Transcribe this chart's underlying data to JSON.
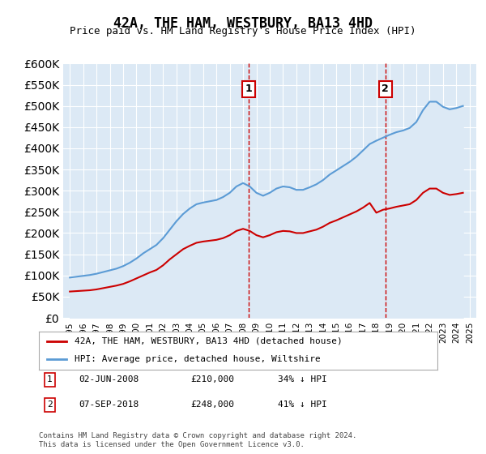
{
  "title": "42A, THE HAM, WESTBURY, BA13 4HD",
  "subtitle": "Price paid vs. HM Land Registry's House Price Index (HPI)",
  "footer": "Contains HM Land Registry data © Crown copyright and database right 2024.\nThis data is licensed under the Open Government Licence v3.0.",
  "legend_label_red": "42A, THE HAM, WESTBURY, BA13 4HD (detached house)",
  "legend_label_blue": "HPI: Average price, detached house, Wiltshire",
  "marker1_date": "02-JUN-2008",
  "marker1_price": "£210,000",
  "marker1_hpi": "34% ↓ HPI",
  "marker1_x": 2008.42,
  "marker2_date": "07-SEP-2018",
  "marker2_price": "£248,000",
  "marker2_hpi": "41% ↓ HPI",
  "marker2_x": 2018.67,
  "ylim_min": 0,
  "ylim_max": 600000,
  "xlim_min": 1994.5,
  "xlim_max": 2025.5,
  "background_color": "#ffffff",
  "plot_bg_color": "#dce9f5",
  "grid_color": "#ffffff",
  "red_line_color": "#cc0000",
  "blue_line_color": "#5b9bd5",
  "marker_box_color": "#cc0000",
  "dashed_line_color": "#cc0000",
  "hpi_years": [
    1995,
    1995.5,
    1996,
    1996.5,
    1997,
    1997.5,
    1998,
    1998.5,
    1999,
    1999.5,
    2000,
    2000.5,
    2001,
    2001.5,
    2002,
    2002.5,
    2003,
    2003.5,
    2004,
    2004.5,
    2005,
    2005.5,
    2006,
    2006.5,
    2007,
    2007.5,
    2008,
    2008.5,
    2009,
    2009.5,
    2010,
    2010.5,
    2011,
    2011.5,
    2012,
    2012.5,
    2013,
    2013.5,
    2014,
    2014.5,
    2015,
    2015.5,
    2016,
    2016.5,
    2017,
    2017.5,
    2018,
    2018.5,
    2019,
    2019.5,
    2020,
    2020.5,
    2021,
    2021.5,
    2022,
    2022.5,
    2023,
    2023.5,
    2024,
    2024.5
  ],
  "hpi_values": [
    95000,
    97000,
    99000,
    101000,
    104000,
    108000,
    112000,
    116000,
    122000,
    130000,
    140000,
    152000,
    162000,
    172000,
    188000,
    208000,
    228000,
    245000,
    258000,
    268000,
    272000,
    275000,
    278000,
    285000,
    295000,
    310000,
    318000,
    310000,
    295000,
    288000,
    295000,
    305000,
    310000,
    308000,
    302000,
    302000,
    308000,
    315000,
    325000,
    338000,
    348000,
    358000,
    368000,
    380000,
    395000,
    410000,
    418000,
    425000,
    432000,
    438000,
    442000,
    448000,
    462000,
    490000,
    510000,
    510000,
    498000,
    492000,
    495000,
    500000
  ],
  "price_years": [
    1995,
    1995.5,
    1996,
    1996.5,
    1997,
    1997.5,
    1998,
    1998.5,
    1999,
    1999.5,
    2000,
    2000.5,
    2001,
    2001.5,
    2002,
    2002.5,
    2003,
    2003.5,
    2004,
    2004.5,
    2005,
    2005.5,
    2006,
    2006.5,
    2007,
    2007.5,
    2008,
    2008.5,
    2009,
    2009.5,
    2010,
    2010.5,
    2011,
    2011.5,
    2012,
    2012.5,
    2013,
    2013.5,
    2014,
    2014.5,
    2015,
    2015.5,
    2016,
    2016.5,
    2017,
    2017.5,
    2018,
    2018.5,
    2019,
    2019.5,
    2020,
    2020.5,
    2021,
    2021.5,
    2022,
    2022.5,
    2023,
    2023.5,
    2024,
    2024.5
  ],
  "price_values": [
    62000,
    63000,
    64000,
    65000,
    67000,
    70000,
    73000,
    76000,
    80000,
    86000,
    93000,
    100000,
    107000,
    113000,
    124000,
    138000,
    150000,
    162000,
    170000,
    177000,
    180000,
    182000,
    184000,
    188000,
    195000,
    205000,
    210000,
    205000,
    195000,
    190000,
    195000,
    202000,
    205000,
    204000,
    200000,
    200000,
    204000,
    208000,
    215000,
    224000,
    230000,
    237000,
    244000,
    251000,
    260000,
    271000,
    248000,
    255000,
    258000,
    262000,
    265000,
    268000,
    278000,
    295000,
    305000,
    305000,
    295000,
    290000,
    292000,
    295000
  ]
}
